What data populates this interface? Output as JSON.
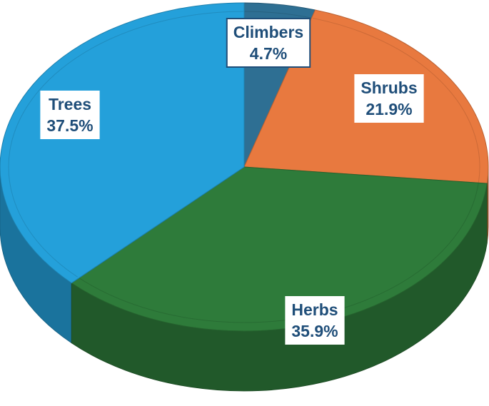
{
  "chart_data": {
    "type": "pie",
    "style": "3d",
    "legend": "none",
    "slices": [
      {
        "label": "Climbers",
        "value": 4.7,
        "value_label": "4.7%",
        "color": "#2e6f93"
      },
      {
        "label": "Shrubs",
        "value": 21.9,
        "value_label": "21.9%",
        "color": "#e8793f"
      },
      {
        "label": "Herbs",
        "value": 35.9,
        "value_label": "35.9%",
        "color": "#2e7b3a"
      },
      {
        "label": "Trees",
        "value": 37.5,
        "value_label": "37.5%",
        "color": "#24a0da"
      }
    ],
    "label_color": "#1f4e79",
    "label_box_color": "#ffffff"
  }
}
